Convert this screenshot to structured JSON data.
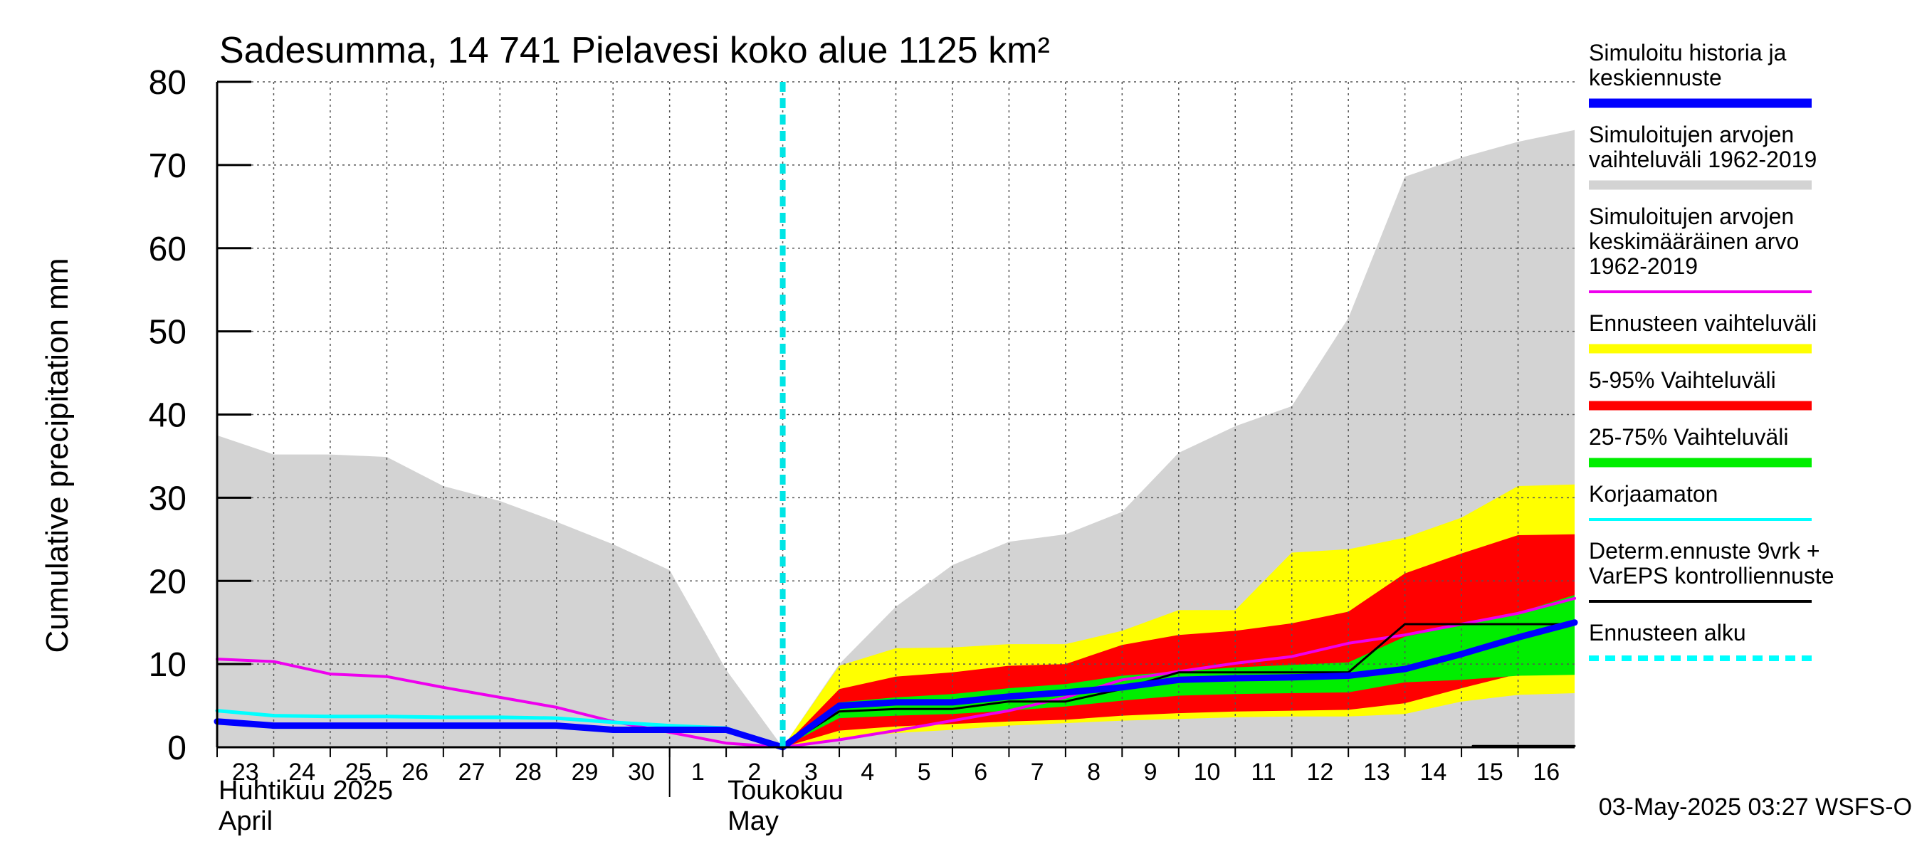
{
  "chart_data": {
    "type": "area",
    "title": "Sadesumma, 14 741 Pielavesi koko alue 1125 km²",
    "ylabel": "Cumulative precipitation   mm",
    "ylim": [
      0,
      80
    ],
    "yticks": [
      0,
      10,
      20,
      30,
      40,
      50,
      60,
      70,
      80
    ],
    "xlim": [
      0,
      24
    ],
    "xticks": [
      {
        "x": 0,
        "label": "23"
      },
      {
        "x": 1,
        "label": "24"
      },
      {
        "x": 2,
        "label": "25"
      },
      {
        "x": 3,
        "label": "26"
      },
      {
        "x": 4,
        "label": "27"
      },
      {
        "x": 5,
        "label": "28"
      },
      {
        "x": 6,
        "label": "29"
      },
      {
        "x": 7,
        "label": "30"
      },
      {
        "x": 8,
        "label": "1"
      },
      {
        "x": 9,
        "label": "2"
      },
      {
        "x": 10,
        "label": "3"
      },
      {
        "x": 11,
        "label": "4"
      },
      {
        "x": 12,
        "label": "5"
      },
      {
        "x": 13,
        "label": "6"
      },
      {
        "x": 14,
        "label": "7"
      },
      {
        "x": 15,
        "label": "8"
      },
      {
        "x": 16,
        "label": "9"
      },
      {
        "x": 17,
        "label": "10"
      },
      {
        "x": 18,
        "label": "11"
      },
      {
        "x": 19,
        "label": "12"
      },
      {
        "x": 20,
        "label": "13"
      },
      {
        "x": 21,
        "label": "14"
      },
      {
        "x": 22,
        "label": "15"
      },
      {
        "x": 23,
        "label": "16"
      }
    ],
    "months": [
      {
        "x": 0,
        "fi": "Huhtikuu  2025",
        "en": "April"
      },
      {
        "x": 9,
        "fi": "Toukokuu",
        "en": "May"
      }
    ],
    "forecast_start": 10,
    "bands": [
      {
        "name": "sim_range",
        "color": "#d3d3d3",
        "upper": [
          [
            0,
            37.5
          ],
          [
            1,
            35.2
          ],
          [
            2,
            35.2
          ],
          [
            3,
            34.9
          ],
          [
            4,
            31.4
          ],
          [
            5,
            29.6
          ],
          [
            6,
            27.1
          ],
          [
            7,
            24.4
          ],
          [
            8,
            21.3
          ],
          [
            9,
            9.3
          ],
          [
            10,
            0
          ],
          [
            11,
            10
          ],
          [
            12,
            16.9
          ],
          [
            13,
            21.9
          ],
          [
            14,
            24.7
          ],
          [
            15,
            25.6
          ],
          [
            16,
            28.3
          ],
          [
            17,
            35.4
          ],
          [
            18,
            38.6
          ],
          [
            19,
            41
          ],
          [
            20,
            51.6
          ],
          [
            21,
            68.6
          ],
          [
            22,
            70.9
          ],
          [
            23,
            72.8
          ],
          [
            24,
            74.2
          ]
        ],
        "lower": [
          [
            0,
            0
          ],
          [
            10,
            0
          ],
          [
            24,
            0
          ]
        ]
      },
      {
        "name": "ens_range",
        "color": "#ffff00",
        "upper": [
          [
            10,
            0
          ],
          [
            11,
            9.8
          ],
          [
            12,
            11.9
          ],
          [
            13,
            12
          ],
          [
            14,
            12.4
          ],
          [
            15,
            12.4
          ],
          [
            16,
            14
          ],
          [
            17,
            16.5
          ],
          [
            18,
            16.5
          ],
          [
            19,
            23.4
          ],
          [
            20,
            23.8
          ],
          [
            21,
            25.2
          ],
          [
            22,
            27.6
          ],
          [
            23,
            31.4
          ],
          [
            24,
            31.6
          ]
        ],
        "lower": [
          [
            10,
            0
          ],
          [
            11,
            1.1
          ],
          [
            12,
            1.7
          ],
          [
            13,
            2.1
          ],
          [
            14,
            2.6
          ],
          [
            15,
            2.9
          ],
          [
            16,
            3.2
          ],
          [
            17,
            3.4
          ],
          [
            18,
            3.6
          ],
          [
            19,
            3.7
          ],
          [
            20,
            3.7
          ],
          [
            21,
            4
          ],
          [
            22,
            5.5
          ],
          [
            23,
            6.3
          ],
          [
            24,
            6.5
          ]
        ]
      },
      {
        "name": "p5_95",
        "color": "#ff0000",
        "upper": [
          [
            10,
            0
          ],
          [
            11,
            7
          ],
          [
            12,
            8.5
          ],
          [
            13,
            9
          ],
          [
            14,
            9.8
          ],
          [
            15,
            10
          ],
          [
            16,
            12.3
          ],
          [
            17,
            13.5
          ],
          [
            18,
            14
          ],
          [
            19,
            14.9
          ],
          [
            20,
            16.3
          ],
          [
            21,
            20.9
          ],
          [
            22,
            23.3
          ],
          [
            23,
            25.5
          ],
          [
            24,
            25.6
          ]
        ],
        "lower": [
          [
            10,
            0
          ],
          [
            11,
            2
          ],
          [
            12,
            2.5
          ],
          [
            13,
            2.8
          ],
          [
            14,
            3.1
          ],
          [
            15,
            3.3
          ],
          [
            16,
            3.8
          ],
          [
            17,
            4.1
          ],
          [
            18,
            4.3
          ],
          [
            19,
            4.4
          ],
          [
            20,
            4.5
          ],
          [
            21,
            5.3
          ],
          [
            22,
            7.1
          ],
          [
            23,
            8.8
          ],
          [
            24,
            9.2
          ]
        ]
      },
      {
        "name": "p25_75",
        "color": "#00ee00",
        "upper": [
          [
            10,
            0
          ],
          [
            11,
            5.4
          ],
          [
            12,
            6
          ],
          [
            13,
            6.4
          ],
          [
            14,
            7.1
          ],
          [
            15,
            7.6
          ],
          [
            16,
            8.6
          ],
          [
            17,
            9.1
          ],
          [
            18,
            9.6
          ],
          [
            19,
            9.9
          ],
          [
            20,
            10.2
          ],
          [
            21,
            13.3
          ],
          [
            22,
            14.7
          ],
          [
            23,
            16.2
          ],
          [
            24,
            18.3
          ]
        ],
        "lower": [
          [
            10,
            0
          ],
          [
            11,
            3.5
          ],
          [
            12,
            3.8
          ],
          [
            13,
            4
          ],
          [
            14,
            4.4
          ],
          [
            15,
            4.9
          ],
          [
            16,
            5.6
          ],
          [
            17,
            6.2
          ],
          [
            18,
            6.4
          ],
          [
            19,
            6.5
          ],
          [
            20,
            6.6
          ],
          [
            21,
            7.8
          ],
          [
            22,
            8.1
          ],
          [
            23,
            8.6
          ],
          [
            24,
            8.7
          ]
        ]
      }
    ],
    "lines": [
      {
        "name": "sim_mean",
        "color": "#ee00ee",
        "width": 4,
        "points": [
          [
            0,
            10.6
          ],
          [
            1,
            10.3
          ],
          [
            2,
            8.8
          ],
          [
            3,
            8.5
          ],
          [
            4,
            7.2
          ],
          [
            5,
            6
          ],
          [
            6,
            4.8
          ],
          [
            7,
            3.1
          ],
          [
            8,
            1.8
          ],
          [
            9,
            0.5
          ],
          [
            10,
            0
          ],
          [
            11,
            0.9
          ],
          [
            12,
            2
          ],
          [
            13,
            3.2
          ],
          [
            14,
            4.4
          ],
          [
            15,
            6
          ],
          [
            16,
            8.1
          ],
          [
            17,
            9.1
          ],
          [
            18,
            10.1
          ],
          [
            19,
            10.9
          ],
          [
            20,
            12.5
          ],
          [
            21,
            13.5
          ],
          [
            22,
            14.8
          ],
          [
            23,
            16.1
          ],
          [
            24,
            17.9
          ]
        ]
      },
      {
        "name": "uncorrected",
        "color": "#00ffff",
        "width": 5,
        "points": [
          [
            0,
            4.4
          ],
          [
            1,
            3.8
          ],
          [
            2,
            3.7
          ],
          [
            3,
            3.7
          ],
          [
            4,
            3.6
          ],
          [
            5,
            3.6
          ],
          [
            6,
            3.5
          ],
          [
            7,
            3
          ],
          [
            8,
            2.6
          ],
          [
            9,
            2.3
          ],
          [
            10,
            0
          ]
        ]
      },
      {
        "name": "determ_control",
        "color": "#000000",
        "width": 3,
        "points": [
          [
            10,
            0
          ],
          [
            11,
            4.3
          ],
          [
            12,
            4.6
          ],
          [
            13,
            4.6
          ],
          [
            14,
            5.5
          ],
          [
            15,
            5.5
          ],
          [
            16,
            7
          ],
          [
            17,
            9
          ],
          [
            18,
            9
          ],
          [
            19,
            9
          ],
          [
            20,
            9
          ],
          [
            21,
            14.8
          ],
          [
            22,
            14.8
          ],
          [
            23,
            14.8
          ],
          [
            24,
            14.8
          ]
        ]
      },
      {
        "name": "determ_low",
        "color": "#000000",
        "width": 3,
        "points": [
          [
            22.2,
            0.15
          ],
          [
            24,
            0.15
          ]
        ]
      },
      {
        "name": "sim_history",
        "color": "#0000ff",
        "width": 9,
        "points": [
          [
            0,
            3.1
          ],
          [
            1,
            2.6
          ],
          [
            2,
            2.6
          ],
          [
            3,
            2.6
          ],
          [
            4,
            2.6
          ],
          [
            5,
            2.6
          ],
          [
            6,
            2.6
          ],
          [
            7,
            2.1
          ],
          [
            8,
            2.1
          ],
          [
            9,
            2.1
          ],
          [
            10,
            0
          ],
          [
            11,
            5
          ],
          [
            12,
            5.4
          ],
          [
            13,
            5.4
          ],
          [
            14,
            6.1
          ],
          [
            15,
            6.6
          ],
          [
            16,
            7.2
          ],
          [
            17,
            8.1
          ],
          [
            18,
            8.3
          ],
          [
            19,
            8.4
          ],
          [
            20,
            8.6
          ],
          [
            21,
            9.4
          ],
          [
            22,
            11.2
          ],
          [
            23,
            13.2
          ],
          [
            24,
            15
          ]
        ]
      }
    ],
    "legend": [
      {
        "lines": [
          "Simuloitu historia ja",
          "keskiennuste"
        ],
        "color": "#0000ff",
        "style": "thick"
      },
      {
        "lines": [
          "Simuloitujen arvojen",
          "vaihteluväli 1962-2019"
        ],
        "color": "#d3d3d3",
        "style": "thick"
      },
      {
        "lines": [
          "Simuloitujen arvojen",
          "keskimääräinen arvo",
          "   1962-2019"
        ],
        "color": "#ee00ee",
        "style": "thin"
      },
      {
        "lines": [
          "Ennusteen vaihteluväli"
        ],
        "color": "#ffff00",
        "style": "thick"
      },
      {
        "lines": [
          "5-95% Vaihteluväli"
        ],
        "color": "#ff0000",
        "style": "thick"
      },
      {
        "lines": [
          "25-75% Vaihteluväli"
        ],
        "color": "#00ee00",
        "style": "thick"
      },
      {
        "lines": [
          "Korjaamaton"
        ],
        "color": "#00ffff",
        "style": "thin"
      },
      {
        "lines": [
          "Determ.ennuste 9vrk +",
          "VarEPS kontrolliennuste"
        ],
        "color": "#000000",
        "style": "thin"
      },
      {
        "lines": [
          "Ennusteen alku"
        ],
        "color": "#00ffff",
        "style": "dashed"
      }
    ],
    "timestamp": "03-May-2025 03:27 WSFS-O"
  }
}
